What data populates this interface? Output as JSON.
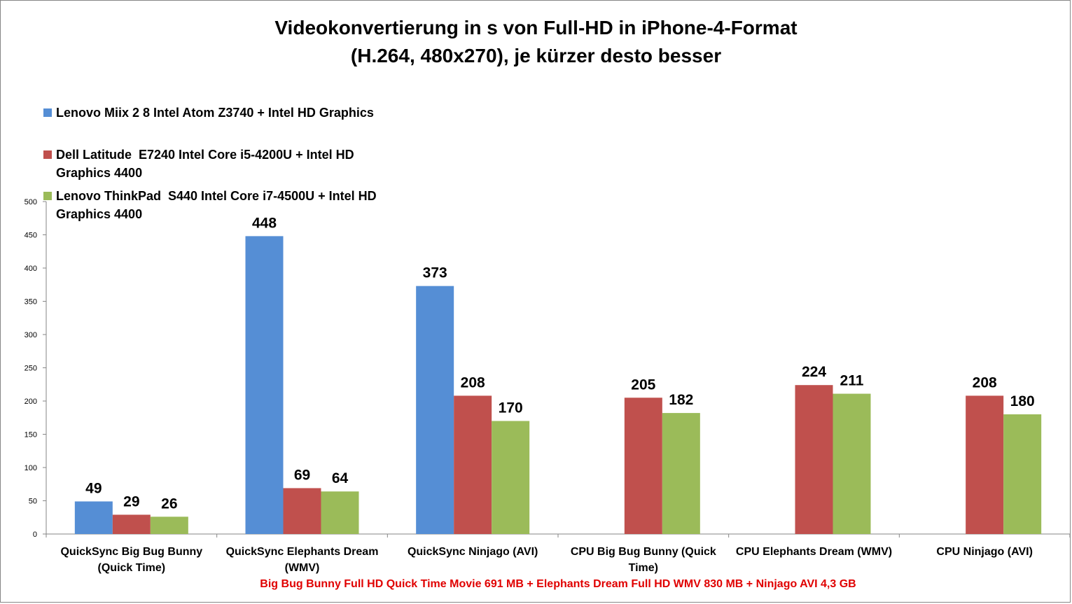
{
  "chart_data": {
    "type": "bar",
    "title": "Videokonvertierung in s von Full-HD in iPhone-4-Format",
    "subtitle": "(H.264, 480x270), je kürzer desto besser",
    "categories": [
      [
        "QuickSync Big Bug Bunny",
        "(Quick Time)"
      ],
      [
        "QuickSync Elephants Dream",
        "(WMV)"
      ],
      [
        "QuickSync Ninjago (AVI)"
      ],
      [
        "CPU Big Bug Bunny (Quick",
        "Time)"
      ],
      [
        "CPU Elephants Dream (WMV)"
      ],
      [
        "CPU Ninjago (AVI)"
      ]
    ],
    "series": [
      {
        "name": [
          "Lenovo Miix 2 8 Intel Atom Z3740 + Intel HD Graphics"
        ],
        "color": "#558ed5",
        "values": [
          49,
          448,
          373,
          null,
          null,
          null
        ]
      },
      {
        "name": [
          "Dell Latitude  E7240 Intel Core i5-4200U + Intel HD",
          "Graphics 4400"
        ],
        "color": "#c0504d",
        "values": [
          29,
          69,
          208,
          205,
          224,
          208
        ]
      },
      {
        "name": [
          "Lenovo ThinkPad  S440 Intel Core i7-4500U + Intel HD",
          "Graphics 4400"
        ],
        "color": "#9bbb59",
        "values": [
          26,
          64,
          170,
          182,
          211,
          180
        ]
      }
    ],
    "ylim": [
      0,
      500
    ],
    "yticks": [
      0,
      50,
      100,
      150,
      200,
      250,
      300,
      350,
      400,
      450,
      500
    ],
    "xlabel": "",
    "ylabel": "",
    "grid": false,
    "legend_position": "top-left",
    "footnote": "Big Bug Bunny Full HD Quick Time Movie 691 MB + Elephants Dream Full HD WMV 830 MB + Ninjago AVI 4,3 GB",
    "footnote_color": "#e00000"
  }
}
